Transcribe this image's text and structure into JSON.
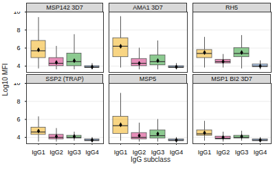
{
  "chart_data": {
    "type": "box",
    "xlabel": "IgG subclass",
    "ylabel": "Log10 MFI",
    "categories": [
      "IgG1",
      "IgG2",
      "IgG3",
      "IgG4"
    ],
    "colors": [
      "#f2b21d",
      "#d4317f",
      "#2e9e35",
      "#6f9fdc"
    ],
    "ylim": [
      3.3,
      10
    ],
    "yticks": [
      4,
      6,
      8,
      10
    ],
    "panels": [
      {
        "title": "MSP142 3D7",
        "boxes": [
          {
            "whisker_low": 3.7,
            "q1": 4.9,
            "median": 5.7,
            "q3": 6.8,
            "whisker_high": 9.4,
            "mean": 5.8
          },
          {
            "whisker_low": 3.6,
            "q1": 4.0,
            "median": 4.3,
            "q3": 4.9,
            "whisker_high": 6.2,
            "mean": 4.4
          },
          {
            "whisker_low": 3.6,
            "q1": 4.0,
            "median": 4.5,
            "q3": 5.4,
            "whisker_high": 7.5,
            "mean": 4.6
          },
          {
            "whisker_low": 3.6,
            "q1": 3.8,
            "median": 3.9,
            "q3": 4.0,
            "whisker_high": 4.3,
            "mean": 3.9
          }
        ]
      },
      {
        "title": "AMA1 3D7",
        "boxes": [
          {
            "whisker_low": 3.8,
            "q1": 5.0,
            "median": 6.2,
            "q3": 7.1,
            "whisker_high": 9.5,
            "mean": 6.2
          },
          {
            "whisker_low": 3.6,
            "q1": 4.0,
            "median": 4.3,
            "q3": 4.8,
            "whisker_high": 6.0,
            "mean": 4.3
          },
          {
            "whisker_low": 3.6,
            "q1": 4.1,
            "median": 4.5,
            "q3": 5.2,
            "whisker_high": 6.8,
            "mean": 4.6
          },
          {
            "whisker_low": 3.6,
            "q1": 3.8,
            "median": 3.9,
            "q3": 4.0,
            "whisker_high": 4.3,
            "mean": 3.9
          }
        ]
      },
      {
        "title": "RH5",
        "boxes": [
          {
            "whisker_low": 3.8,
            "q1": 4.9,
            "median": 5.4,
            "q3": 5.8,
            "whisker_high": 7.2,
            "mean": 5.5
          },
          {
            "whisker_low": 3.8,
            "q1": 4.3,
            "median": 4.5,
            "q3": 4.7,
            "whisker_high": 5.3,
            "mean": 4.5
          },
          {
            "whisker_low": 3.7,
            "q1": 5.0,
            "median": 5.4,
            "q3": 6.0,
            "whisker_high": 7.4,
            "mean": 5.5
          },
          {
            "whisker_low": 3.6,
            "q1": 3.9,
            "median": 4.0,
            "q3": 4.2,
            "whisker_high": 4.6,
            "mean": 4.0
          }
        ]
      },
      {
        "title": "SSP2 (TRAP)",
        "boxes": [
          {
            "whisker_low": 3.5,
            "q1": 4.3,
            "median": 4.6,
            "q3": 5.1,
            "whisker_high": 6.3,
            "mean": 4.7
          },
          {
            "whisker_low": 3.5,
            "q1": 3.8,
            "median": 4.0,
            "q3": 4.3,
            "whisker_high": 5.0,
            "mean": 4.1
          },
          {
            "whisker_low": 3.6,
            "q1": 3.9,
            "median": 4.0,
            "q3": 4.2,
            "whisker_high": 4.6,
            "mean": 4.1
          },
          {
            "whisker_low": 3.5,
            "q1": 3.6,
            "median": 3.7,
            "q3": 3.8,
            "whisker_high": 4.0,
            "mean": 3.7
          }
        ]
      },
      {
        "title": "MSP5",
        "boxes": [
          {
            "whisker_low": 3.6,
            "q1": 4.4,
            "median": 5.3,
            "q3": 6.3,
            "whisker_high": 8.9,
            "mean": 5.4
          },
          {
            "whisker_low": 3.5,
            "q1": 3.8,
            "median": 4.0,
            "q3": 4.5,
            "whisker_high": 5.6,
            "mean": 4.2
          },
          {
            "whisker_low": 3.5,
            "q1": 3.9,
            "median": 4.2,
            "q3": 4.8,
            "whisker_high": 6.0,
            "mean": 4.4
          },
          {
            "whisker_low": 3.4,
            "q1": 3.6,
            "median": 3.7,
            "q3": 3.8,
            "whisker_high": 4.0,
            "mean": 3.7
          }
        ]
      },
      {
        "title": "MSP1 BI2 3D7",
        "boxes": [
          {
            "whisker_low": 3.6,
            "q1": 4.2,
            "median": 4.4,
            "q3": 4.8,
            "whisker_high": 5.8,
            "mean": 4.5
          },
          {
            "whisker_low": 3.5,
            "q1": 3.8,
            "median": 3.9,
            "q3": 4.1,
            "whisker_high": 4.6,
            "mean": 4.0
          },
          {
            "whisker_low": 3.6,
            "q1": 3.9,
            "median": 4.0,
            "q3": 4.2,
            "whisker_high": 4.7,
            "mean": 4.1
          },
          {
            "whisker_low": 3.5,
            "q1": 3.6,
            "median": 3.7,
            "q3": 3.8,
            "whisker_high": 4.0,
            "mean": 3.7
          }
        ]
      }
    ]
  }
}
